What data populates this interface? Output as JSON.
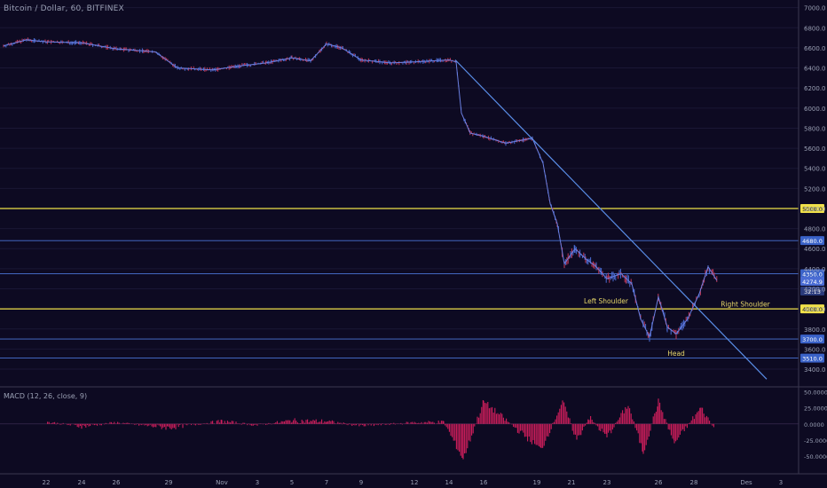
{
  "header": {
    "title": "Bitcoin / Dollar, 60, BITFINEX"
  },
  "macd_panel": {
    "title": "MACD (12, 26, close, 9)"
  },
  "colors": {
    "background": "#0d0a22",
    "candle": "#4a6cd4",
    "candle_down": "#c43a5a",
    "support_lines": "#4a74d6",
    "key_levels": "#f0e04a",
    "trendline": "#5a8ee8",
    "macd_hist": "#d01e5c",
    "axis_text": "#9aa0b4",
    "annotation_text": "#e8d86a"
  },
  "chart_data": [
    {
      "type": "line",
      "title": "Bitcoin / Dollar, 60, BITFINEX",
      "x_tick_labels": [
        "22",
        "24",
        "26",
        "29",
        "Nov",
        "3",
        "5",
        "7",
        "9",
        "12",
        "14",
        "16",
        "19",
        "21",
        "23",
        "26",
        "28",
        "Des",
        "3"
      ],
      "y_tick_labels": [
        "7000.0",
        "6800.0",
        "6600.0",
        "6400.0",
        "6200.0",
        "6000.0",
        "5800.0",
        "5600.0",
        "5400.0",
        "5200.0",
        "5000.0",
        "4800.0",
        "4600.0",
        "4400.0",
        "4200.0",
        "4000.0",
        "3800.0",
        "3600.0",
        "3400.0"
      ],
      "ylim": [
        3250,
        7050
      ],
      "x": [
        "22",
        "24",
        "26",
        "29",
        "Nov",
        "3",
        "5",
        "7",
        "9",
        "12",
        "14",
        "16",
        "19",
        "21",
        "23",
        "26",
        "28"
      ],
      "series": [
        {
          "values": [
            6640,
            6660,
            6610,
            6540,
            6390,
            6430,
            6420,
            6520,
            6450,
            6430,
            6480,
            5720,
            5700,
            4450,
            4250,
            3850,
            4250
          ]
        }
      ],
      "horizontal_levels": [
        {
          "value": 5000.0,
          "label": "5000.0",
          "style": "key"
        },
        {
          "value": 4680.0,
          "label": "4680.0",
          "style": "support"
        },
        {
          "value": 4350.0,
          "label": "4350.0",
          "style": "support"
        },
        {
          "value": 4000.0,
          "label": "4000.0",
          "style": "key"
        },
        {
          "value": 3700.0,
          "label": "3700.0",
          "style": "support"
        },
        {
          "value": 3510.0,
          "label": "3510.0",
          "style": "support"
        }
      ],
      "current_price": {
        "label": "4274.9",
        "value": 4274.9,
        "countdown": "32:13"
      },
      "trendline": {
        "from": {
          "x": "14",
          "value": 6480
        },
        "to": {
          "x": "30",
          "value": 3300
        }
      },
      "annotations": [
        {
          "text": "Left Shoulder",
          "x": "22",
          "value": 4080
        },
        {
          "text": "Head",
          "x": "26",
          "value": 3560
        },
        {
          "text": "Right Shoulder",
          "x": "29",
          "value": 4050
        }
      ]
    },
    {
      "type": "bar",
      "title": "MACD (12, 26, close, 9)",
      "y_tick_labels": [
        "50.0000",
        "25.0000",
        "0.0000",
        "-25.0000",
        "-50.0000"
      ],
      "ylim": [
        -75,
        55
      ],
      "x": [
        "22",
        "24",
        "26",
        "29",
        "Nov",
        "3",
        "5",
        "7",
        "9",
        "12",
        "14",
        "16",
        "17",
        "19",
        "20",
        "21",
        "22",
        "23",
        "24",
        "25",
        "26",
        "27",
        "28",
        "29"
      ],
      "values": [
        3,
        -4,
        2,
        -6,
        4,
        -2,
        5,
        4,
        -3,
        2,
        3,
        -55,
        35,
        -40,
        35,
        -25,
        10,
        -20,
        30,
        -45,
        35,
        -30,
        25,
        -10
      ]
    }
  ]
}
